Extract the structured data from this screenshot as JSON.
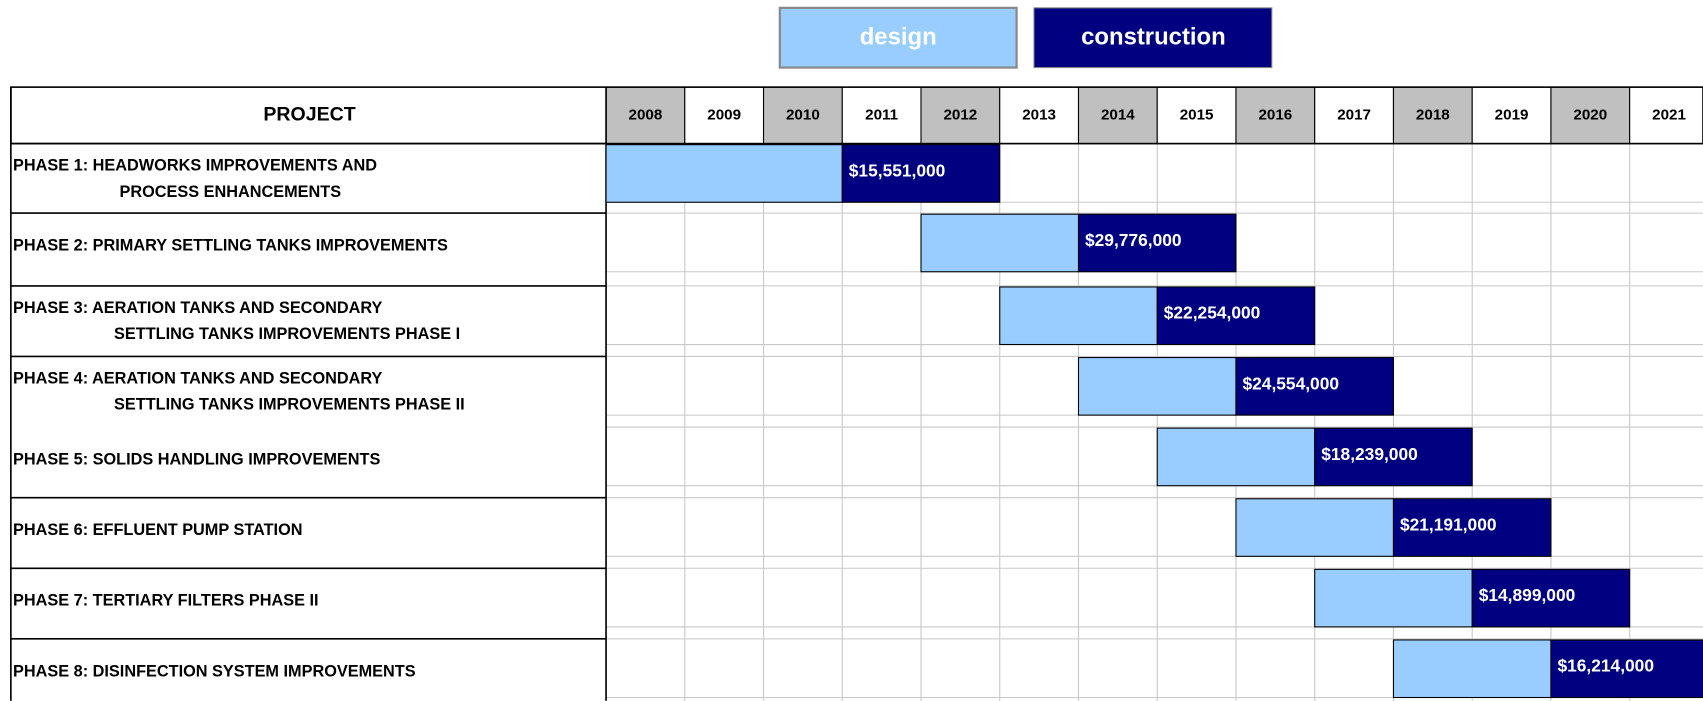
{
  "legend": {
    "design": "design",
    "construction": "construction"
  },
  "table": {
    "header": "PROJECT",
    "years": [
      2008,
      2009,
      2010,
      2011,
      2012,
      2013,
      2014,
      2015,
      2016,
      2017,
      2018,
      2019,
      2020,
      2021
    ]
  },
  "phases": [
    {
      "lines": [
        "PHASE 1: HEADWORKS IMPROVEMENTS AND",
        "PROCESS ENHANCEMENTS"
      ],
      "design": [
        2008,
        2011
      ],
      "construction": [
        2011,
        2013
      ],
      "cost": "$15,551,000"
    },
    {
      "lines": [
        "PHASE 2: PRIMARY SETTLING TANKS IMPROVEMENTS"
      ],
      "design": [
        2012,
        2014
      ],
      "construction": [
        2014,
        2016
      ],
      "cost": "$29,776,000"
    },
    {
      "lines": [
        "PHASE 3: AERATION TANKS AND SECONDARY",
        "SETTLING TANKS IMPROVEMENTS PHASE I"
      ],
      "design": [
        2013,
        2015
      ],
      "construction": [
        2015,
        2017
      ],
      "cost": "$22,254,000"
    },
    {
      "lines": [
        "PHASE 4: AERATION TANKS AND SECONDARY",
        "SETTLING TANKS IMPROVEMENTS PHASE II"
      ],
      "design": [
        2014,
        2016
      ],
      "construction": [
        2016,
        2018
      ],
      "cost": "$24,554,000"
    },
    {
      "lines": [
        "PHASE 5: SOLIDS HANDLING IMPROVEMENTS"
      ],
      "design": [
        2015,
        2017
      ],
      "construction": [
        2017,
        2019
      ],
      "cost": "$18,239,000"
    },
    {
      "lines": [
        "PHASE 6: EFFLUENT PUMP STATION"
      ],
      "design": [
        2016,
        2018
      ],
      "construction": [
        2018,
        2020
      ],
      "cost": "$21,191,000"
    },
    {
      "lines": [
        "PHASE 7: TERTIARY FILTERS PHASE II"
      ],
      "design": [
        2017,
        2019
      ],
      "construction": [
        2019,
        2021
      ],
      "cost": "$14,899,000"
    },
    {
      "lines": [
        "PHASE 8: DISINFECTION SYSTEM IMPROVEMENTS"
      ],
      "design": [
        2018,
        2020
      ],
      "construction": [
        2020,
        2022
      ],
      "cost": "$16,214,000"
    }
  ]
}
